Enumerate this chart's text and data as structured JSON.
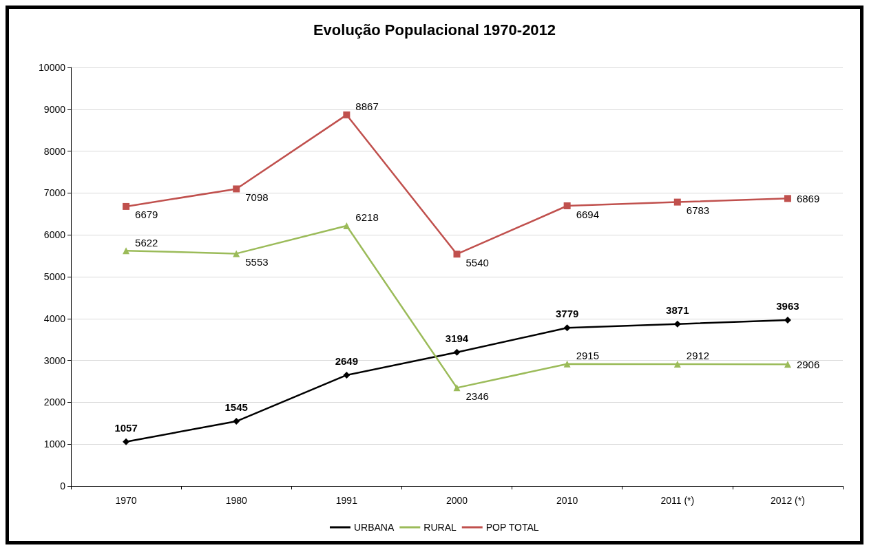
{
  "chart_data": {
    "type": "line",
    "title": "Evolução Populacional 1970-2012",
    "categories": [
      "1970",
      "1980",
      "1991",
      "2000",
      "2010",
      "2011 (*)",
      "2012 (*)"
    ],
    "series": [
      {
        "name": "URBANA",
        "color": "#000000",
        "marker": "diamond",
        "values": [
          1057,
          1545,
          2649,
          3194,
          3779,
          3871,
          3963
        ]
      },
      {
        "name": "RURAL",
        "color": "#9bbb59",
        "marker": "triangle",
        "values": [
          5622,
          5553,
          6218,
          2346,
          2915,
          2912,
          2906
        ]
      },
      {
        "name": "POP TOTAL",
        "color": "#c0504d",
        "marker": "square",
        "values": [
          6679,
          7098,
          8867,
          5540,
          6694,
          6783,
          6869
        ]
      }
    ],
    "ylim": [
      0,
      10000
    ],
    "yticks": [
      0,
      1000,
      2000,
      3000,
      4000,
      5000,
      6000,
      7000,
      8000,
      9000,
      10000
    ],
    "grid": "y",
    "legend": "bottom",
    "data_labels": true
  }
}
